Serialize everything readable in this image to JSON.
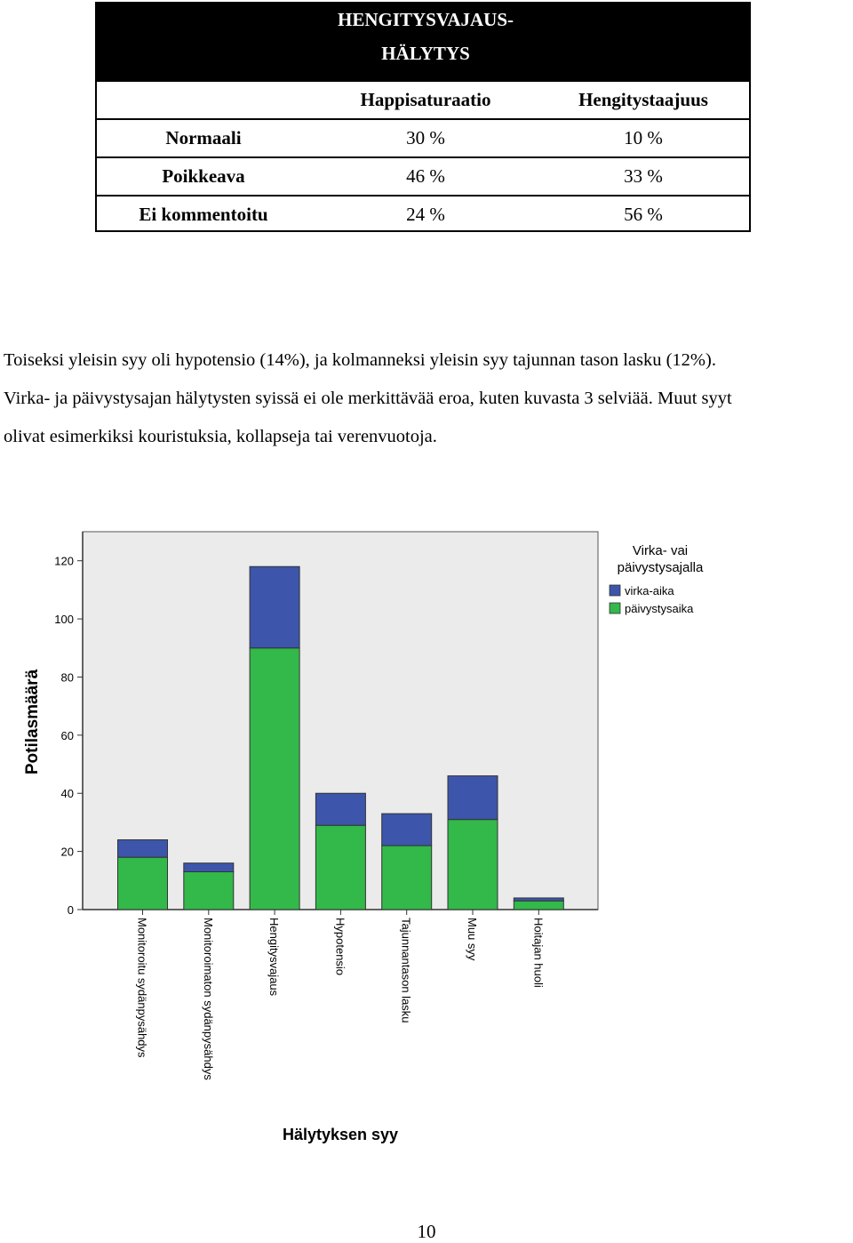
{
  "table": {
    "title_line1": "HENGITYSVAJAUS-",
    "title_line2": "HÄLYTYS",
    "col_headers": [
      "",
      "Happisaturaatio",
      "Hengitystaajuus"
    ],
    "rows": [
      {
        "label": "Normaali",
        "saturation": "30 %",
        "frequency": "10 %"
      },
      {
        "label": "Poikkeava",
        "saturation": "46 %",
        "frequency": "33 %"
      },
      {
        "label": "Ei kommentoitu",
        "saturation": "24 %",
        "frequency": "56 %"
      }
    ]
  },
  "paragraph": {
    "line1": "Toiseksi yleisin syy oli hypotensio (14%), ja kolmanneksi yleisin syy tajunnan tason lasku (12%).",
    "line2": "Virka- ja päivystysajan hälytysten syissä ei ole merkittävää eroa, kuten kuvasta 3 selviää. Muut syyt",
    "line3": "olivat esimerkiksi kouristuksia, kollapseja tai verenvuotoja."
  },
  "chart_data": {
    "type": "bar",
    "stacked": true,
    "categories": [
      "Monitoroitu sydänpysähdys",
      "Monitoroimaton sydänpysähdys",
      "Hengitysvajaus",
      "Hypotensio",
      "Tajunnantason lasku",
      "Muu syy",
      "Hoitajan huoli"
    ],
    "series": [
      {
        "name": "päivystysaika",
        "color": "#33b84a",
        "values": [
          18,
          13,
          90,
          29,
          22,
          31,
          3
        ]
      },
      {
        "name": "virka-aika",
        "color": "#3d55ab",
        "values": [
          6,
          3,
          28,
          11,
          11,
          15,
          1
        ]
      }
    ],
    "xlabel": "Hälytyksen syy",
    "ylabel": "Potilasmäärä",
    "ylim": [
      0,
      130
    ],
    "yticks": [
      "0",
      "20",
      "40",
      "60",
      "80",
      "100",
      "120"
    ],
    "legend_title_line1": "Virka- vai",
    "legend_title_line2": "päivystysajalla",
    "legend_position": "top-right",
    "grid": false
  },
  "page_number": "10"
}
